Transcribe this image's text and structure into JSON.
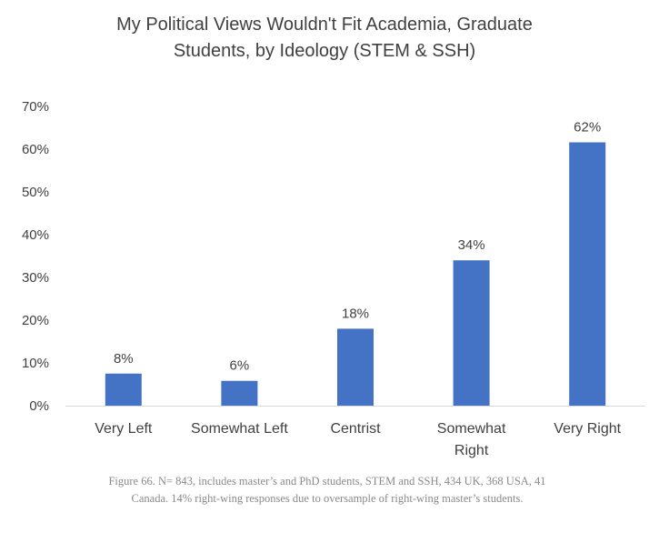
{
  "chart_data": {
    "type": "bar",
    "title_lines": [
      "My Political Views Wouldn't Fit Academia, Graduate",
      "Students, by Ideology (STEM & SSH)"
    ],
    "categories": [
      [
        "Very Left"
      ],
      [
        "Somewhat Left"
      ],
      [
        "Centrist"
      ],
      [
        "Somewhat",
        "Right"
      ],
      [
        "Very Right"
      ]
    ],
    "values": [
      7.5,
      5.8,
      18,
      34,
      61.6
    ],
    "data_labels": [
      "8%",
      "6%",
      "18%",
      "34%",
      "62%"
    ],
    "y_ticks": [
      "0%",
      "10%",
      "20%",
      "30%",
      "40%",
      "50%",
      "60%",
      "70%"
    ],
    "ylim": [
      0,
      70
    ],
    "bar_color": "#4472c4",
    "grid": false,
    "legend": "none"
  },
  "caption": "Figure 66. N= 843, includes master’s and PhD students, STEM and SSH, 434 UK, 368 USA, 41 Canada. 14% right-wing responses due to oversample of right-wing master’s students."
}
